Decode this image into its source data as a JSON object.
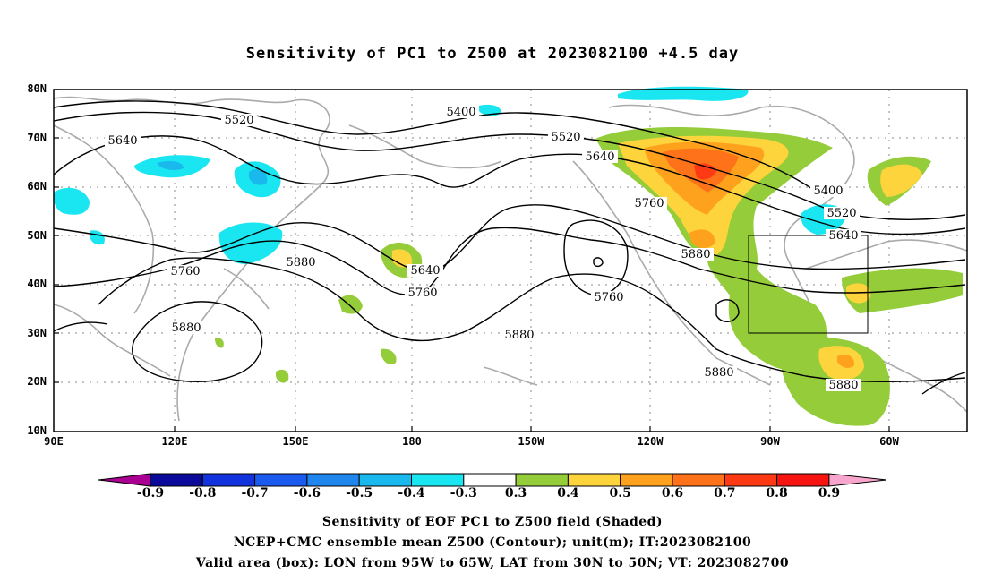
{
  "title": "Sensitivity of PC1 to Z500 at 2023082100 +4.5 day",
  "lat_labels": [
    "80N",
    "70N",
    "60N",
    "50N",
    "40N",
    "30N",
    "20N",
    "10N"
  ],
  "lon_labels": [
    "90E",
    "120E",
    "150E",
    "180",
    "150W",
    "120W",
    "90W",
    "60W"
  ],
  "contour_labels": [
    "5400",
    "5520",
    "5640",
    "5760",
    "5880"
  ],
  "colorbar": {
    "ticks": [
      "-0.9",
      "-0.8",
      "-0.7",
      "-0.6",
      "-0.5",
      "-0.4",
      "-0.3",
      "0.3",
      "0.4",
      "0.5",
      "0.6",
      "0.7",
      "0.8",
      "0.9"
    ],
    "colors": [
      "#aa0091",
      "#0a0a9a",
      "#1133dd",
      "#1a5aee",
      "#1f86ee",
      "#19b9ee",
      "#19e6f0",
      "#ffffff",
      "#95cc3a",
      "#fed43c",
      "#fea21e",
      "#fe721a",
      "#fe3a15",
      "#f51410",
      "#f7a5cc"
    ]
  },
  "footer": {
    "line1": "Sensitivity of EOF PC1 to Z500 field (Shaded)",
    "line2": "NCEP+CMC ensemble mean Z500 (Contour); unit(m); IT:2023082100",
    "line3": "Valid area (box): LON from 95W to 65W, LAT from 30N to 50N; VT: 2023082700"
  }
}
